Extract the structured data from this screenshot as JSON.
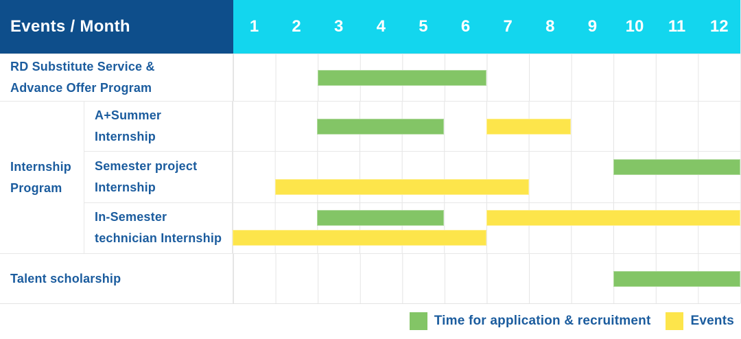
{
  "chart_data": {
    "type": "bar",
    "variant": "gantt-schedule",
    "title": "Events / Month",
    "x_ticks": [
      "1",
      "2",
      "3",
      "4",
      "5",
      "6",
      "7",
      "8",
      "9",
      "10",
      "11",
      "12"
    ],
    "x_range": [
      1,
      12
    ],
    "grid": true,
    "legend_position": "bottom-right",
    "legend": [
      {
        "key": "application",
        "label": "Time for application & recruitment",
        "color": "#83c566"
      },
      {
        "key": "events",
        "label": "Events",
        "color": "#fde54b"
      }
    ],
    "rows": [
      {
        "label_lines": [
          "RD Substitute Service &",
          "Advance Offer Program"
        ],
        "lines": [
          [
            {
              "type": "application",
              "start_month": 3,
              "end_month": 6
            }
          ]
        ]
      },
      {
        "group_lines": [
          "Internship",
          "Program"
        ],
        "label_lines": [
          "A+Summer",
          "Internship"
        ],
        "lines": [
          [
            {
              "type": "application",
              "start_month": 3,
              "end_month": 5
            },
            {
              "type": "events",
              "start_month": 7,
              "end_month": 8
            }
          ]
        ]
      },
      {
        "label_lines": [
          "Semester project",
          "Internship"
        ],
        "lines": [
          [
            {
              "type": "application",
              "start_month": 10,
              "end_month": 12
            }
          ],
          [
            {
              "type": "events",
              "start_month": 2,
              "end_month": 7
            }
          ]
        ]
      },
      {
        "label_lines": [
          "In-Semester",
          "technician Internship"
        ],
        "lines": [
          [
            {
              "type": "application",
              "start_month": 3,
              "end_month": 5
            },
            {
              "type": "events",
              "start_month": 7,
              "end_month": 12
            }
          ],
          [
            {
              "type": "events",
              "start_month": 1,
              "end_month": 6
            }
          ]
        ]
      },
      {
        "label_lines": [
          "Talent scholarship"
        ],
        "lines": [
          [
            {
              "type": "application",
              "start_month": 10,
              "end_month": 12
            }
          ]
        ]
      }
    ],
    "colors": {
      "header_bg": "#0e4e8b",
      "months_bg": "#13d6ee",
      "header_text": "#ffffff",
      "label_text": "#1b5c9e",
      "grid_line": "#e4e4e4",
      "bar_green": "#83c566",
      "bar_yellow": "#fde54b"
    }
  }
}
